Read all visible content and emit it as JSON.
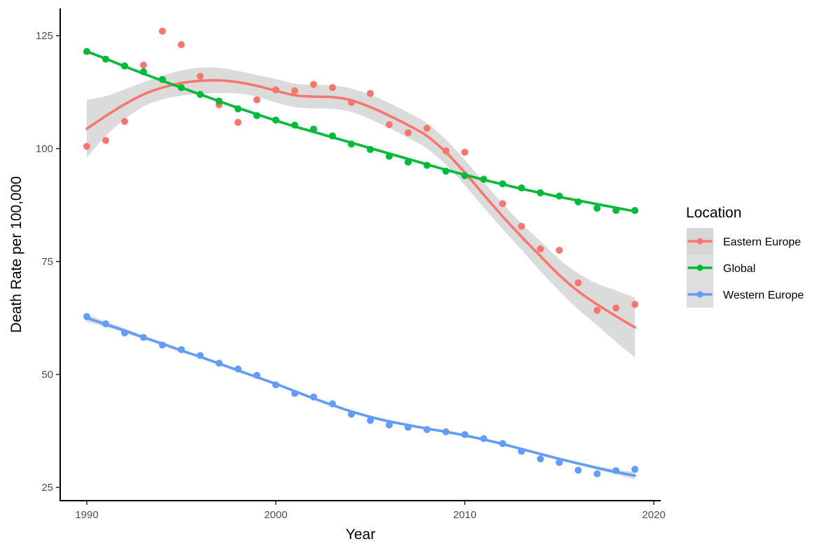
{
  "chart_data": {
    "type": "scatter",
    "xlabel": "Year",
    "ylabel": "Death Rate per 100,000",
    "xlim": [
      1988.5,
      2020.5
    ],
    "ylim": [
      24,
      127.5
    ],
    "xticks": [
      1990,
      2000,
      2010,
      2020
    ],
    "yticks": [
      25,
      50,
      75,
      100,
      125
    ],
    "grid": false,
    "legend_title": "Location",
    "legend_position": "right",
    "x": [
      1990,
      1991,
      1992,
      1993,
      1994,
      1995,
      1996,
      1997,
      1998,
      1999,
      2000,
      2001,
      2002,
      2003,
      2004,
      2005,
      2006,
      2007,
      2008,
      2009,
      2010,
      2011,
      2012,
      2013,
      2014,
      2015,
      2016,
      2017,
      2018,
      2019
    ],
    "series": [
      {
        "name": "Eastern Europe",
        "color": "#F8766D",
        "values": [
          100.5,
          101.8,
          106,
          118.5,
          126,
          123,
          116,
          109.7,
          105.8,
          110.8,
          113,
          112.8,
          114.2,
          113.5,
          110.2,
          112.2,
          105.3,
          103.5,
          104.5,
          99.5,
          99.2,
          93.2,
          87.8,
          82.8,
          77.8,
          77.5,
          70.3,
          64.2,
          64.7,
          65.5
        ],
        "smooth": {
          "x": [
            1990,
            1991,
            1992,
            1993,
            1994,
            1995,
            1996,
            1997,
            1998,
            1999,
            2000,
            2001,
            2002,
            2003,
            2004,
            2005,
            2006,
            2007,
            2008,
            2009,
            2010,
            2011,
            2012,
            2013,
            2014,
            2015,
            2016,
            2017,
            2018,
            2019
          ],
          "fit": [
            104.4,
            107.2,
            109.8,
            112,
            113.5,
            114.5,
            115,
            115.1,
            114.7,
            113.9,
            112.8,
            111.8,
            111.5,
            111.4,
            110.7,
            109.2,
            107.3,
            105.2,
            102.8,
            99.2,
            94.7,
            89.8,
            85,
            80.5,
            76.2,
            72,
            68.4,
            65.5,
            62.9,
            60.4
          ],
          "lower": [
            98,
            102.8,
            106.5,
            109.3,
            110.9,
            111.7,
            112.1,
            112.3,
            112.2,
            111.5,
            110.2,
            109.2,
            108.9,
            108.8,
            108.1,
            106.5,
            104.5,
            102.4,
            100,
            96.4,
            91.9,
            87,
            82.2,
            77.6,
            72.9,
            68.5,
            64.4,
            60.9,
            57.2,
            53.8
          ],
          "upper": [
            110.8,
            111.6,
            113.1,
            114.7,
            116.1,
            117.3,
            117.9,
            117.9,
            117.2,
            116.3,
            115.4,
            114.4,
            114.1,
            114,
            113.3,
            111.9,
            110.1,
            108,
            105.6,
            102,
            97.5,
            92.6,
            87.8,
            83.4,
            79.5,
            75.5,
            72.4,
            70.1,
            68.6,
            67
          ]
        }
      },
      {
        "name": "Global",
        "color": "#00BA38",
        "values": [
          121.5,
          119.8,
          118.3,
          117,
          115.3,
          113.5,
          112,
          110.5,
          108.8,
          107.3,
          106.3,
          105.2,
          104.3,
          102.8,
          101,
          99.8,
          98.3,
          97,
          96.3,
          95,
          94,
          93.2,
          92.2,
          91.3,
          90.2,
          89.5,
          88.2,
          86.8,
          86.3,
          86.3
        ],
        "smooth": {
          "x": [
            1990,
            1991,
            1992,
            1993,
            1994,
            1995,
            1996,
            1997,
            1998,
            1999,
            2000,
            2001,
            2002,
            2003,
            2004,
            2005,
            2006,
            2007,
            2008,
            2009,
            2010,
            2011,
            2012,
            2013,
            2014,
            2015,
            2016,
            2017,
            2018,
            2019
          ],
          "fit": [
            121.5,
            119.9,
            118.2,
            116.6,
            115,
            113.5,
            112,
            110.5,
            109,
            107.6,
            106.2,
            104.9,
            103.7,
            102.5,
            101.3,
            100.1,
            98.9,
            97.7,
            96.5,
            95.3,
            94.2,
            93.1,
            92.1,
            91.1,
            90.2,
            89.3,
            88.5,
            87.7,
            86.9,
            86.1
          ],
          "lower": [
            121.2,
            119.6,
            117.9,
            116.3,
            114.7,
            113.2,
            111.7,
            110.2,
            108.7,
            107.3,
            105.9,
            104.6,
            103.4,
            102.2,
            101,
            99.8,
            98.6,
            97.4,
            96.2,
            95,
            93.9,
            92.8,
            91.8,
            90.8,
            89.9,
            89,
            88.2,
            87.4,
            86.6,
            85.8
          ],
          "upper": [
            121.8,
            120.2,
            118.5,
            116.9,
            115.3,
            113.8,
            112.3,
            110.8,
            109.3,
            107.9,
            106.5,
            105.2,
            104,
            102.8,
            101.6,
            100.4,
            99.2,
            98,
            96.8,
            95.6,
            94.5,
            93.4,
            92.4,
            91.4,
            90.5,
            89.6,
            88.8,
            88,
            87.2,
            86.4
          ]
        }
      },
      {
        "name": "Western Europe",
        "color": "#619CFF",
        "values": [
          62.8,
          61.2,
          59.2,
          58.2,
          56.5,
          55.5,
          54.2,
          52.5,
          51.2,
          49.8,
          47.7,
          45.8,
          45,
          43.5,
          41.2,
          39.8,
          38.8,
          38.3,
          37.8,
          37.3,
          36.7,
          35.8,
          34.7,
          33,
          31.3,
          30.5,
          28.8,
          28,
          28.7,
          29
        ],
        "smooth": {
          "x": [
            1990,
            1991,
            1992,
            1993,
            1994,
            1995,
            1996,
            1997,
            1998,
            1999,
            2000,
            2001,
            2002,
            2003,
            2004,
            2005,
            2006,
            2007,
            2008,
            2009,
            2010,
            2011,
            2012,
            2013,
            2014,
            2015,
            2016,
            2017,
            2018,
            2019
          ],
          "fit": [
            62.5,
            61.1,
            59.7,
            58.2,
            56.8,
            55.3,
            53.9,
            52.4,
            50.9,
            49.4,
            47.9,
            46.3,
            44.7,
            43.2,
            41.8,
            40.6,
            39.6,
            38.8,
            38,
            37.3,
            36.5,
            35.6,
            34.6,
            33.5,
            32.4,
            31.3,
            30.3,
            29.3,
            28.4,
            27.6
          ],
          "lower": [
            61.7,
            60.5,
            59.2,
            57.8,
            56.4,
            55,
            53.6,
            52.1,
            50.6,
            49.1,
            47.6,
            46,
            44.4,
            42.9,
            41.5,
            40.3,
            39.3,
            38.5,
            37.7,
            37,
            36.2,
            35.3,
            34.3,
            33.2,
            32.1,
            31,
            30,
            28.9,
            27.9,
            26.8
          ],
          "upper": [
            63.3,
            61.7,
            60.2,
            58.6,
            57.2,
            55.6,
            54.2,
            52.7,
            51.2,
            49.7,
            48.2,
            46.6,
            45,
            43.5,
            42.1,
            40.9,
            39.9,
            39.1,
            38.3,
            37.6,
            36.8,
            35.9,
            34.9,
            33.8,
            32.7,
            31.6,
            30.6,
            29.7,
            28.9,
            28.4
          ]
        }
      }
    ]
  }
}
